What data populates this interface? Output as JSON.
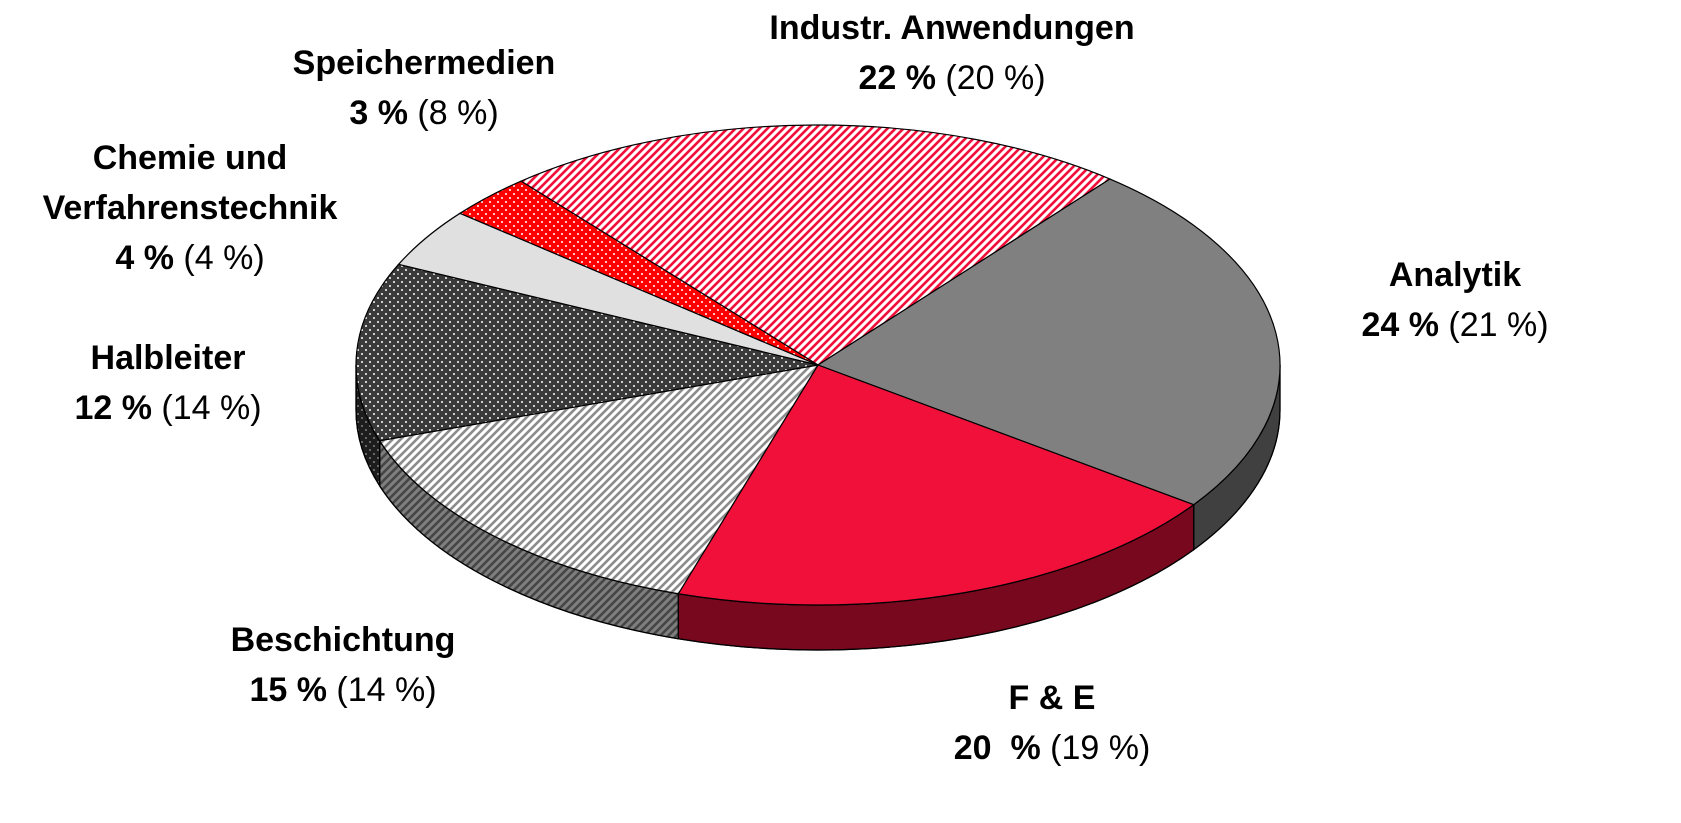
{
  "chart_data": {
    "type": "pie3d",
    "categories": [
      "Industr. Anwendungen",
      "Analytik",
      "F & E",
      "Beschichtung",
      "Halbleiter",
      "Chemie und Verfahrenstechnik",
      "Speichermedien"
    ],
    "series": [
      {
        "values": [
          22,
          24,
          20,
          15,
          12,
          4,
          3
        ],
        "value_labels": [
          "22 %",
          "24 %",
          "20  %",
          "15 %",
          "12 %",
          "4 %",
          "3 %"
        ]
      },
      {
        "values": [
          20,
          21,
          19,
          14,
          14,
          4,
          8
        ],
        "value_labels": [
          "(20 %)",
          "(21 %)",
          "(19 %)",
          "(14 %)",
          "(14 %)",
          "(4 %)",
          "(8 %)"
        ]
      }
    ],
    "colors": [
      "#f0103a",
      "#808080",
      "#f0103a",
      "#8c8c8c",
      "#3a3a3a",
      "#e0e0e0",
      "#ff0000"
    ],
    "patterns": [
      "stripes",
      "solid",
      "solid",
      "stripes",
      "dots",
      "solid",
      "dots"
    ],
    "start_angle": -130
  }
}
